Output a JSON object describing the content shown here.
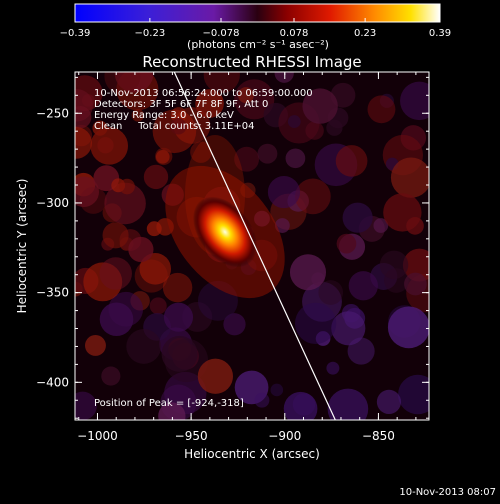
{
  "chart_data": {
    "type": "heatmap",
    "title": "Reconstructed RHESSI Image",
    "xlabel": "Heliocentric X (arcsec)",
    "ylabel": "Heliocentric Y (arcsec)",
    "xlim": [
      -1012,
      -823
    ],
    "ylim": [
      -421,
      -227
    ],
    "x_ticks": [
      -1000,
      -950,
      -900,
      -850
    ],
    "y_ticks": [
      -250,
      -300,
      -350,
      -400
    ],
    "x_tick_labels": [
      "−1000",
      "−950",
      "−900",
      "−850"
    ],
    "y_tick_labels": [
      "−250",
      "−300",
      "−350",
      "−400"
    ],
    "colorbar": {
      "range": [
        -0.39,
        0.39
      ],
      "ticks": [
        -0.39,
        -0.23,
        -0.078,
        0.078,
        0.23,
        0.39
      ],
      "tick_labels": [
        "−0.39",
        "−0.23",
        "−0.078",
        "0.078",
        "0.23",
        "0.39"
      ],
      "label": "(photons cm⁻² s⁻¹ asec⁻²)"
    },
    "peak": [
      -924,
      -318
    ],
    "annotations": [
      "10-Nov-2013 06:56:24.000 to 06:59:00.000",
      "Detectors: 3F 5F 6F 7F 8F 9F, Att 0",
      "Energy Range: 3.0 - 6.0 keV",
      "Clean     Total counts: 3.11E+04"
    ],
    "peak_label": "Position of Peak = [-924,-318]",
    "limb_line": [
      [
        -959,
        -227
      ],
      [
        -873,
        -421
      ]
    ],
    "grid": false
  },
  "footer_timestamp": "10-Nov-2013 08:07",
  "colors": {
    "background": "#000000",
    "text": "#ffffff",
    "limb": "#ffffff"
  }
}
